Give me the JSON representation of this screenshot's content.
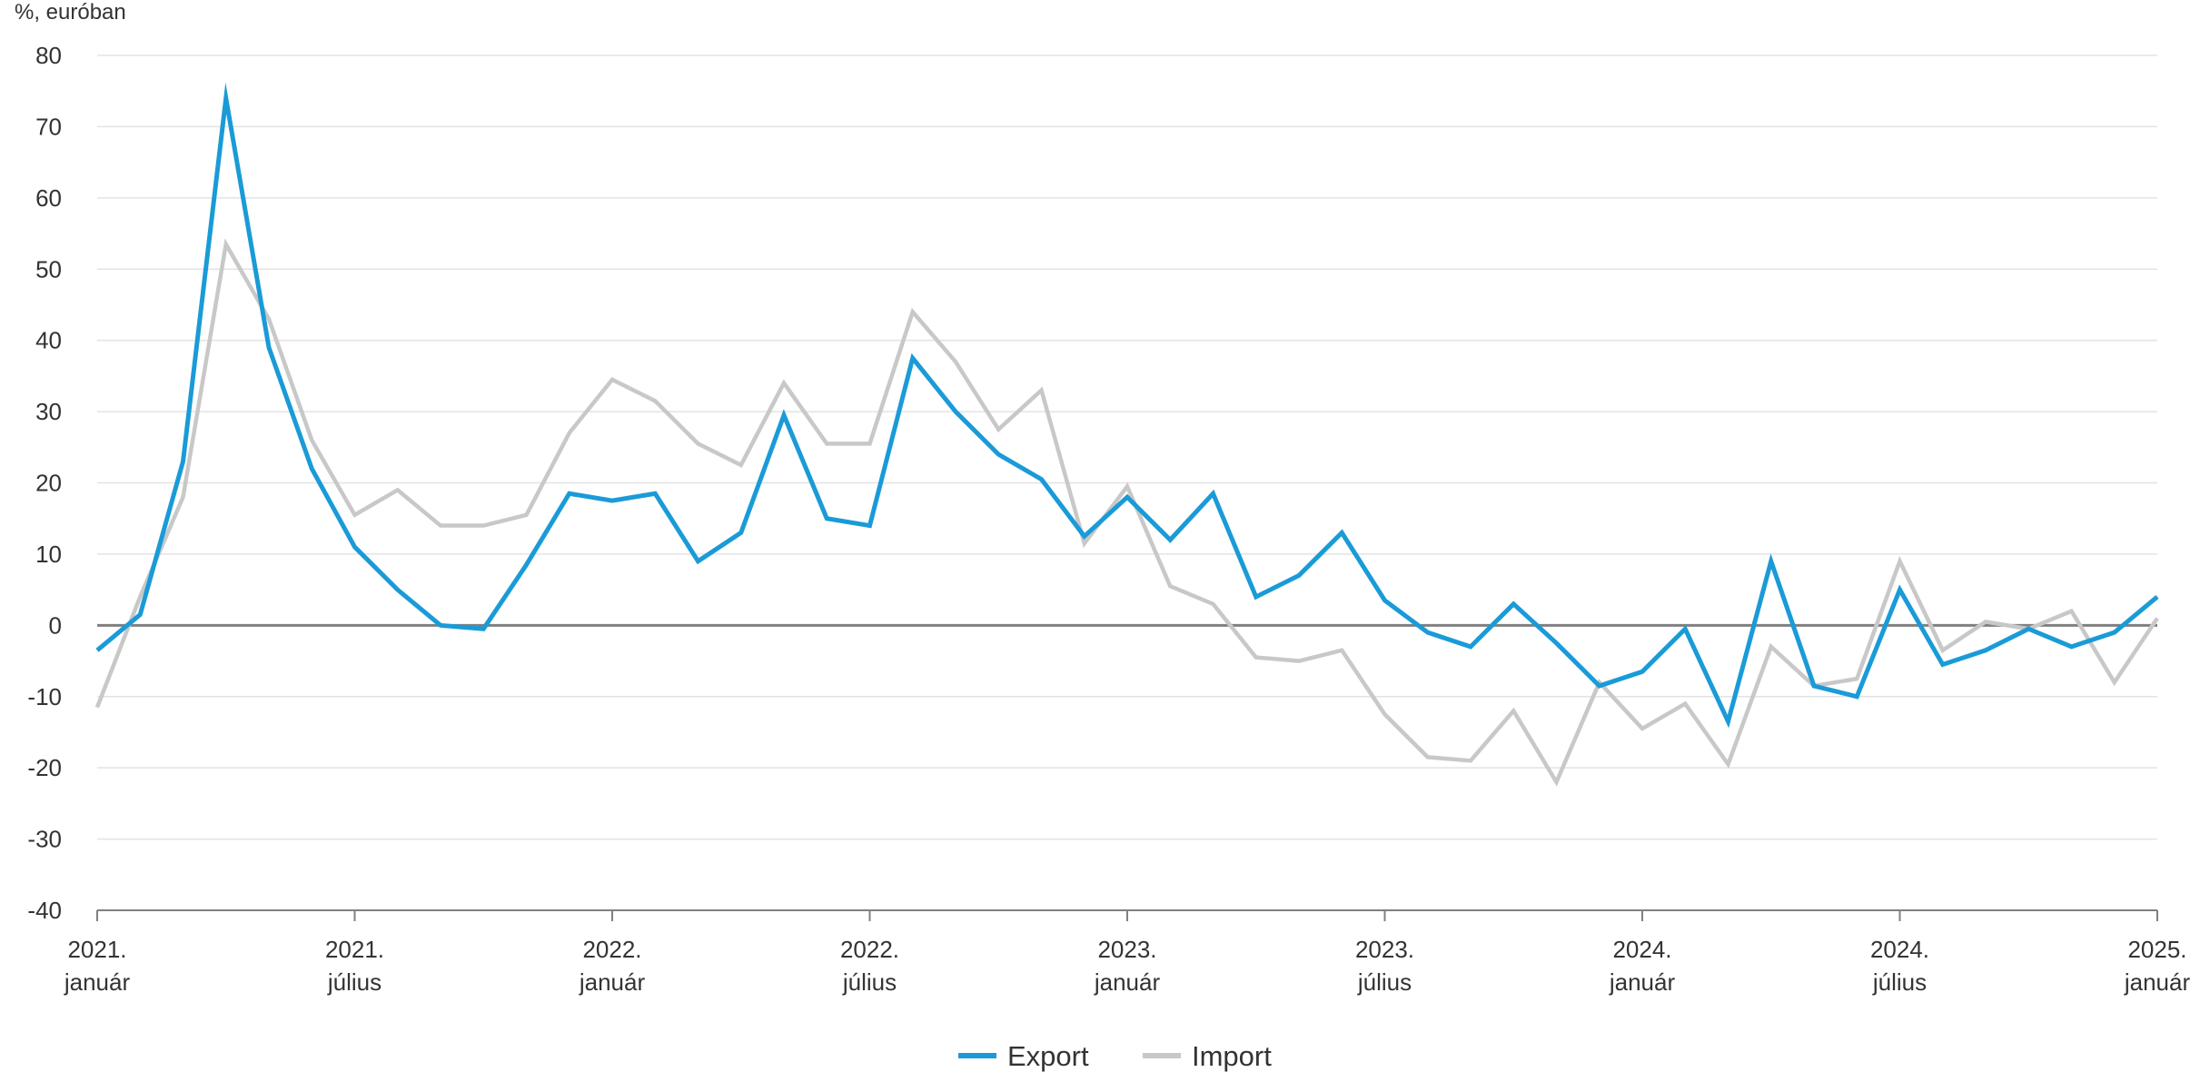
{
  "chart_data": {
    "type": "line",
    "unit_label": "%, euróban",
    "ylim": [
      -40,
      80
    ],
    "yticks": [
      -40,
      -30,
      -20,
      -10,
      0,
      10,
      20,
      30,
      40,
      50,
      60,
      70,
      80
    ],
    "x_count": 49,
    "x_labels": [
      {
        "i": 0,
        "year": "2021.",
        "month": "január"
      },
      {
        "i": 6,
        "year": "2021.",
        "month": "július"
      },
      {
        "i": 12,
        "year": "2022.",
        "month": "január"
      },
      {
        "i": 18,
        "year": "2022.",
        "month": "július"
      },
      {
        "i": 24,
        "year": "2023.",
        "month": "január"
      },
      {
        "i": 30,
        "year": "2023.",
        "month": "július"
      },
      {
        "i": 36,
        "year": "2024.",
        "month": "január"
      },
      {
        "i": 42,
        "year": "2024.",
        "month": "július"
      },
      {
        "i": 48,
        "year": "2025.",
        "month": "január"
      }
    ],
    "grid": true,
    "legend_position": "bottom-center",
    "series": [
      {
        "name": "Export",
        "color": "#1a9bd7",
        "values": [
          -3.5,
          1.5,
          23,
          74,
          39,
          22,
          11,
          5,
          0,
          -0.5,
          8.5,
          18.5,
          17.5,
          18.5,
          9,
          13,
          29.5,
          15,
          14,
          37.5,
          30,
          24,
          20.5,
          12.5,
          18,
          12,
          18.5,
          4,
          7,
          13,
          3.5,
          -1,
          -3,
          3,
          -2.5,
          -8.5,
          -6.5,
          -0.5,
          -13.5,
          9,
          -8.5,
          -10,
          5,
          -5.5,
          -3.5,
          -0.5,
          -3,
          -1,
          4
        ]
      },
      {
        "name": "Import",
        "color": "#c8c8c8",
        "values": [
          -11.5,
          4,
          18,
          53.5,
          43,
          26,
          15.5,
          19,
          14,
          14,
          15.5,
          27,
          34.5,
          31.5,
          25.5,
          22.5,
          34,
          25.5,
          25.5,
          44,
          37,
          27.5,
          33,
          11.5,
          19.5,
          5.5,
          3,
          -4.5,
          -5,
          -3.5,
          -12.5,
          -18.5,
          -19,
          -12,
          -22,
          -8,
          -14.5,
          -11,
          -19.5,
          -3,
          -8.5,
          -7.5,
          9,
          -3.5,
          0.5,
          -0.5,
          2,
          -8,
          1
        ]
      }
    ]
  }
}
